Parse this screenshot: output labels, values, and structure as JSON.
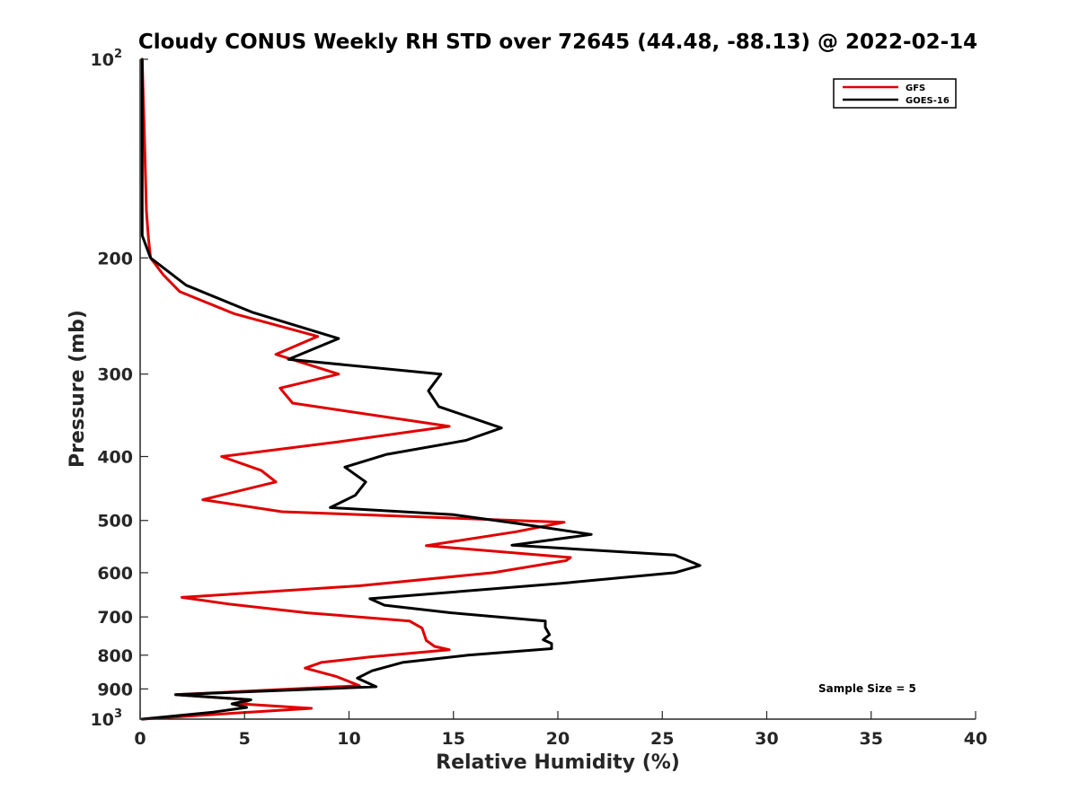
{
  "chart_data": {
    "type": "line",
    "title": "Cloudy CONUS Weekly RH STD over 72645 (44.48, -88.13) @ 2022-02-14",
    "xlabel": "Relative Humidity (%)",
    "ylabel": "Pressure (mb)",
    "xlim": [
      0,
      40
    ],
    "ylim": [
      100,
      1000
    ],
    "y_scale": "log",
    "y_reversed": true,
    "grid": false,
    "legend_position": "top-right",
    "x_ticks": [
      {
        "value": 0,
        "label": "0"
      },
      {
        "value": 5,
        "label": "5"
      },
      {
        "value": 10,
        "label": "10"
      },
      {
        "value": 15,
        "label": "15"
      },
      {
        "value": 20,
        "label": "20"
      },
      {
        "value": 25,
        "label": "25"
      },
      {
        "value": 30,
        "label": "30"
      },
      {
        "value": 35,
        "label": "35"
      },
      {
        "value": 40,
        "label": "40"
      }
    ],
    "y_ticks": [
      {
        "value": 100,
        "base": "10",
        "exp": "2"
      },
      {
        "value": 200,
        "label": "200"
      },
      {
        "value": 300,
        "label": "300"
      },
      {
        "value": 400,
        "label": "400"
      },
      {
        "value": 500,
        "label": "500"
      },
      {
        "value": 600,
        "label": "600"
      },
      {
        "value": 700,
        "label": "700"
      },
      {
        "value": 800,
        "label": "800"
      },
      {
        "value": 900,
        "label": "900"
      },
      {
        "value": 1000,
        "base": "10",
        "exp": "3"
      }
    ],
    "annotation": "Sample Size = 5",
    "series": [
      {
        "name": "GFS",
        "color": "#e00000",
        "points": [
          [
            0.1,
            100
          ],
          [
            0.2,
            130
          ],
          [
            0.3,
            170
          ],
          [
            0.4,
            187
          ],
          [
            0.5,
            200
          ],
          [
            1.1,
            212
          ],
          [
            1.9,
            225
          ],
          [
            4.5,
            243
          ],
          [
            8.5,
            263
          ],
          [
            6.5,
            280
          ],
          [
            9.5,
            300
          ],
          [
            6.7,
            315
          ],
          [
            7.3,
            332
          ],
          [
            14.8,
            360
          ],
          [
            9.5,
            380
          ],
          [
            3.9,
            400
          ],
          [
            5.8,
            420
          ],
          [
            6.5,
            437
          ],
          [
            3.0,
            465
          ],
          [
            6.8,
            485
          ],
          [
            20.3,
            503
          ],
          [
            18.0,
            520
          ],
          [
            13.7,
            546
          ],
          [
            20.6,
            569
          ],
          [
            20.4,
            575
          ],
          [
            16.9,
            600
          ],
          [
            10.5,
            628
          ],
          [
            2.0,
            654
          ],
          [
            4.2,
            669
          ],
          [
            8.0,
            690
          ],
          [
            12.9,
            710
          ],
          [
            13.5,
            728
          ],
          [
            13.7,
            760
          ],
          [
            14.1,
            776
          ],
          [
            14.8,
            785
          ],
          [
            11.0,
            805
          ],
          [
            8.7,
            820
          ],
          [
            7.9,
            837
          ],
          [
            9.4,
            862
          ],
          [
            10.5,
            890
          ],
          [
            1.7,
            918
          ],
          [
            5.3,
            935
          ],
          [
            4.8,
            948
          ],
          [
            8.2,
            963
          ],
          [
            5.0,
            977
          ],
          [
            0.1,
            1000
          ]
        ]
      },
      {
        "name": "GOES-16",
        "color": "#000000",
        "points": [
          [
            0.1,
            100
          ],
          [
            0.1,
            150
          ],
          [
            0.1,
            185
          ],
          [
            0.5,
            200
          ],
          [
            2.2,
            220
          ],
          [
            5.4,
            242
          ],
          [
            9.5,
            265
          ],
          [
            7.1,
            285
          ],
          [
            14.4,
            300
          ],
          [
            13.8,
            318
          ],
          [
            14.3,
            336
          ],
          [
            17.3,
            362
          ],
          [
            15.6,
            378
          ],
          [
            11.8,
            397
          ],
          [
            9.8,
            415
          ],
          [
            10.8,
            437
          ],
          [
            10.3,
            458
          ],
          [
            9.1,
            478
          ],
          [
            15.0,
            490
          ],
          [
            18.0,
            505
          ],
          [
            21.6,
            525
          ],
          [
            17.8,
            545
          ],
          [
            25.6,
            564
          ],
          [
            26.8,
            585
          ],
          [
            25.6,
            600
          ],
          [
            20.1,
            623
          ],
          [
            11.0,
            657
          ],
          [
            11.7,
            672
          ],
          [
            14.9,
            690
          ],
          [
            19.4,
            710
          ],
          [
            19.4,
            726
          ],
          [
            19.6,
            745
          ],
          [
            19.3,
            758
          ],
          [
            19.7,
            768
          ],
          [
            19.7,
            782
          ],
          [
            15.7,
            800
          ],
          [
            12.6,
            820
          ],
          [
            11.1,
            845
          ],
          [
            10.4,
            867
          ],
          [
            11.3,
            893
          ],
          [
            1.7,
            918
          ],
          [
            5.3,
            935
          ],
          [
            4.4,
            948
          ],
          [
            5.1,
            960
          ],
          [
            3.5,
            976
          ],
          [
            0.1,
            1000
          ]
        ]
      }
    ]
  }
}
